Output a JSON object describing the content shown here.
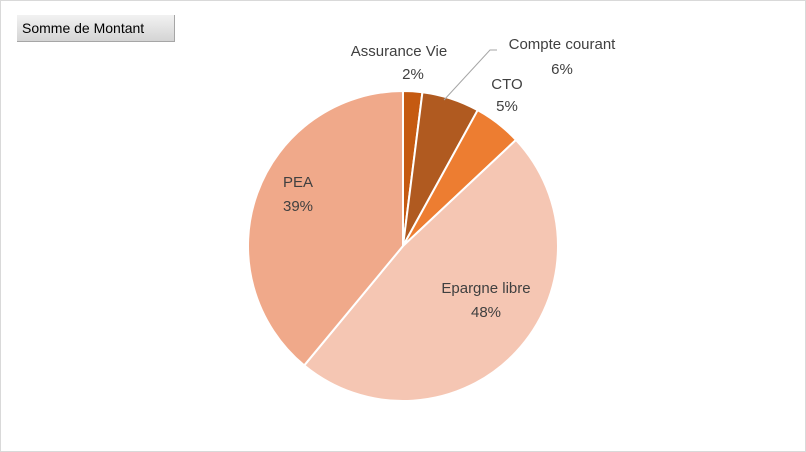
{
  "pivot_field": "Somme de Montant",
  "chart_data": {
    "type": "pie",
    "categories": [
      "Assurance Vie",
      "Compte courant",
      "CTO",
      "Epargne libre",
      "PEA"
    ],
    "values": [
      2,
      6,
      5,
      48,
      39
    ],
    "value_labels": [
      "2%",
      "6%",
      "5%",
      "48%",
      "39%"
    ],
    "colors": [
      "#c55a11",
      "#b05a20",
      "#ed7d31",
      "#f5c6b3",
      "#f0a98a"
    ]
  }
}
